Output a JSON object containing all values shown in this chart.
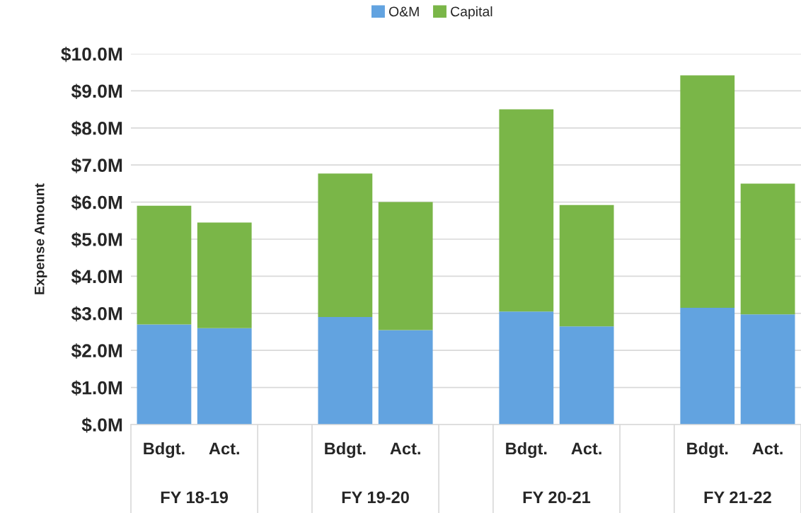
{
  "chart_data": {
    "type": "bar",
    "stacked": true,
    "ylabel": "Expense Amount",
    "categories": [
      "Bdgt.",
      "Act.",
      "Bdgt.",
      "Act.",
      "Bdgt.",
      "Act.",
      "Bdgt.",
      "Act."
    ],
    "annotations": [
      "FY 18-19",
      "FY 19-20",
      "FY 20-21",
      "FY 21-22"
    ],
    "series": [
      {
        "name": "O&M",
        "color": "#62a3e0",
        "values": [
          2.7,
          2.6,
          2.9,
          2.55,
          3.05,
          2.65,
          3.15,
          2.97
        ]
      },
      {
        "name": "Capital",
        "color": "#7ab648",
        "values": [
          3.2,
          2.85,
          3.87,
          3.45,
          5.45,
          3.27,
          6.27,
          3.53
        ]
      }
    ],
    "ylim": [
      0,
      10
    ],
    "yticks": [
      {
        "value": 0,
        "label": "$.0M"
      },
      {
        "value": 1,
        "label": "$1.0M"
      },
      {
        "value": 2,
        "label": "$2.0M"
      },
      {
        "value": 3,
        "label": "$3.0M"
      },
      {
        "value": 4,
        "label": "$4.0M"
      },
      {
        "value": 5,
        "label": "$5.0M"
      },
      {
        "value": 6,
        "label": "$6.0M"
      },
      {
        "value": 7,
        "label": "$7.0M"
      },
      {
        "value": 8,
        "label": "$8.0M"
      },
      {
        "value": 9,
        "label": "$9.0M"
      },
      {
        "value": 10,
        "label": "$10.0M"
      }
    ],
    "grid": "y",
    "legend": "top"
  }
}
